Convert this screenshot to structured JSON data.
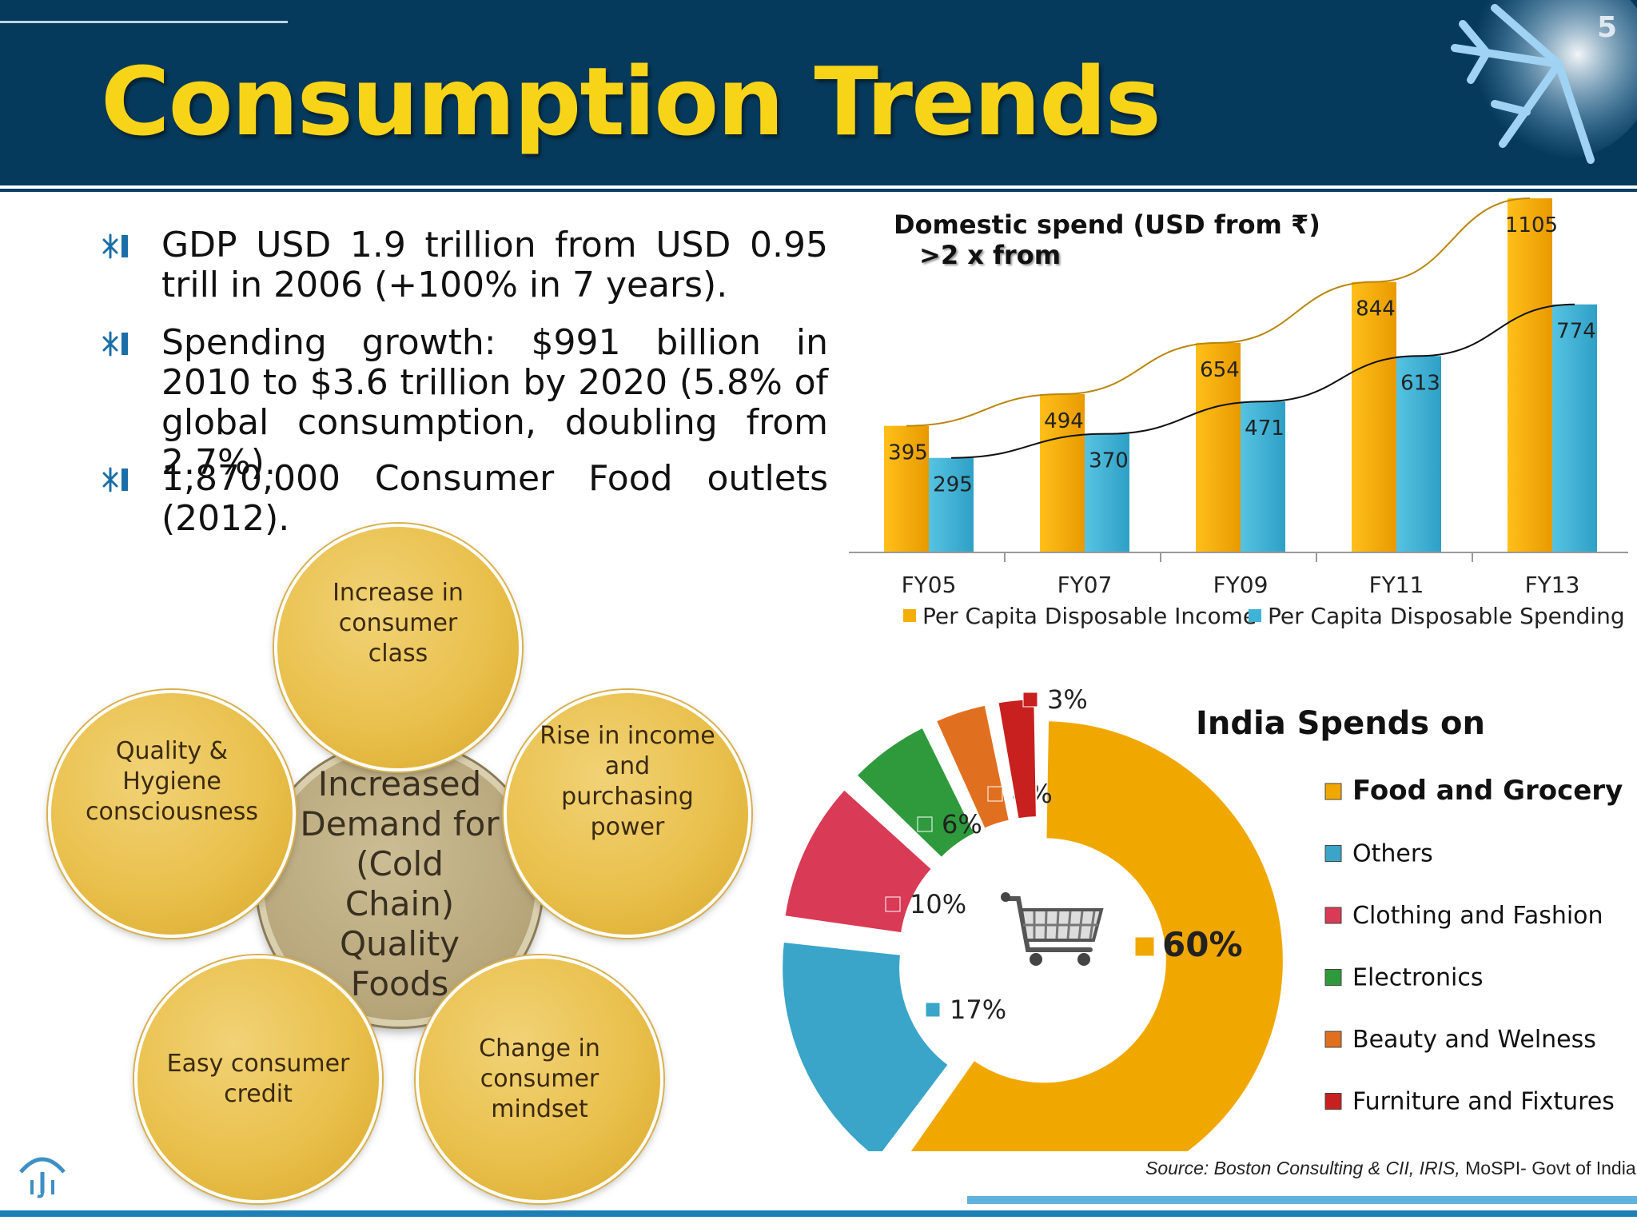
{
  "slide": {
    "title": "Consumption Trends",
    "number": "5"
  },
  "bullets": [
    "GDP USD 1.9 trillion from USD 0.95 trill in 2006 (+100% in 7 years).",
    "Spending growth: $991 billion in 2010 to $3.6 trillion by 2020 (5.8% of global consumption, doubling from 2.7%).",
    "1,870,000 Consumer Food outlets (2012)."
  ],
  "diagram": {
    "center": "Increased Demand for (Cold Chain) Quality Foods",
    "petals": {
      "top": "Increase in consumer class",
      "right": "Rise in income and purchasing power",
      "bottom_right": "Change in consumer mindset",
      "bottom_left": "Easy consumer credit",
      "left": "Quality & Hygiene consciousness"
    }
  },
  "chart_data": [
    {
      "type": "bar",
      "title": "Domestic spend (USD from ₹)",
      "subtitle": ">2 x from",
      "categories": [
        "FY05",
        "FY07",
        "FY09",
        "FY11",
        "FY13"
      ],
      "series": [
        {
          "name": "Per Capita Disposable Income",
          "values": [
            395,
            494,
            654,
            844,
            1105
          ],
          "color": "#f5ae07"
        },
        {
          "name": "Per Capita Disposable Spending",
          "values": [
            295,
            370,
            471,
            613,
            774
          ],
          "color": "#3fb3d6"
        }
      ],
      "trendlines": true,
      "legend": "bottom",
      "ylim": [
        0,
        1150
      ]
    },
    {
      "type": "pie",
      "style": "exploded-doughnut",
      "title": "India Spends on",
      "center_icon": "shopping-cart-icon",
      "slices": [
        {
          "name": "Food and Grocery",
          "value": 60,
          "label": "60%",
          "color": "#f0a800"
        },
        {
          "name": "Others",
          "value": 17,
          "label": "17%",
          "color": "#3aa5c8"
        },
        {
          "name": "Clothing and Fashion",
          "value": 10,
          "label": "10%",
          "color": "#d93a55"
        },
        {
          "name": "Electronics",
          "value": 6,
          "label": "6%",
          "color": "#2e9a3c"
        },
        {
          "name": "Beauty and Welness",
          "value": 4,
          "label": "4%",
          "color": "#e07020"
        },
        {
          "name": "Furniture and Fixtures",
          "value": 3,
          "label": "3%",
          "color": "#c8201e"
        }
      ],
      "legend": "right"
    }
  ],
  "source": {
    "italic": "Source: Boston Consulting & CII, IRIS,",
    "plain": " MoSPI- Govt of India."
  },
  "colors": {
    "header_bg": "#063a5c",
    "title": "#f7d418"
  }
}
